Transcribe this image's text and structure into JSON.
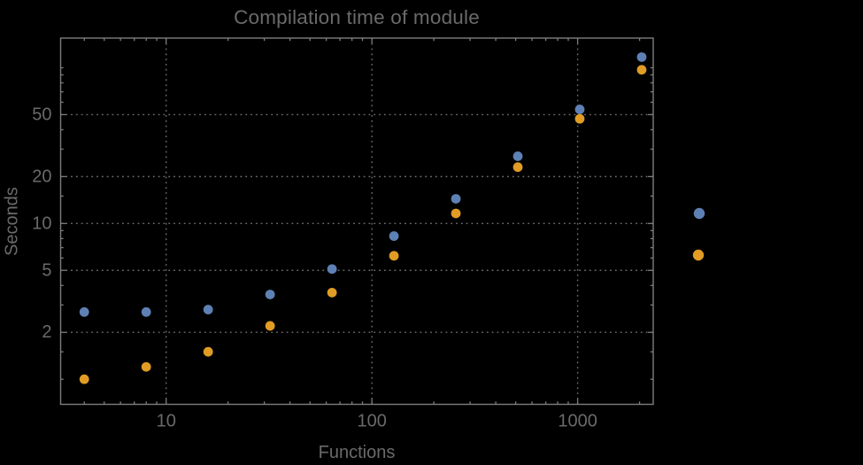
{
  "window": {
    "background": "#000000"
  },
  "chart_data": {
    "type": "scatter",
    "title": "Compilation time of module",
    "xlabel": "Functions",
    "ylabel": "Seconds",
    "x_scale": "log",
    "y_scale": "log",
    "xlim": [
      3.07,
      2330
    ],
    "ylim": [
      0.69,
      155
    ],
    "grid": true,
    "grid_style": "dotted",
    "x": [
      4,
      8,
      16,
      32,
      64,
      128,
      256,
      512,
      1024,
      2048
    ],
    "series": [
      {
        "name": "series-1-blue",
        "color": "#5e81b5",
        "values": [
          2.7,
          2.7,
          2.8,
          3.5,
          5.1,
          8.3,
          14.4,
          27,
          54,
          117
        ]
      },
      {
        "name": "series-2-orange",
        "color": "#e09c24",
        "values": [
          1.0,
          1.2,
          1.5,
          2.2,
          3.6,
          6.2,
          11.6,
          23,
          47,
          97
        ]
      }
    ],
    "x_ticks_major": [
      10,
      100,
      1000
    ],
    "x_ticks_minor": [
      4,
      5,
      6,
      7,
      8,
      9,
      20,
      30,
      40,
      50,
      60,
      70,
      80,
      90,
      200,
      300,
      400,
      500,
      600,
      700,
      800,
      900,
      2000
    ],
    "y_ticks_major": [
      2,
      5,
      10,
      20,
      50
    ],
    "y_ticks_minor": [
      1,
      1.5,
      3,
      4,
      6,
      7,
      8,
      9,
      15,
      30,
      40,
      60,
      70,
      80,
      90,
      100
    ],
    "legend": {
      "labels_visible": false,
      "marker_colors": [
        "#5e81b5",
        "#e09c24"
      ]
    }
  },
  "colors": {
    "background": "#000000",
    "text": "#6a6a6a",
    "frame": "#7d7d7d",
    "grid": "#6d6d6d",
    "series1": "#5e81b5",
    "series2": "#e09c24"
  }
}
